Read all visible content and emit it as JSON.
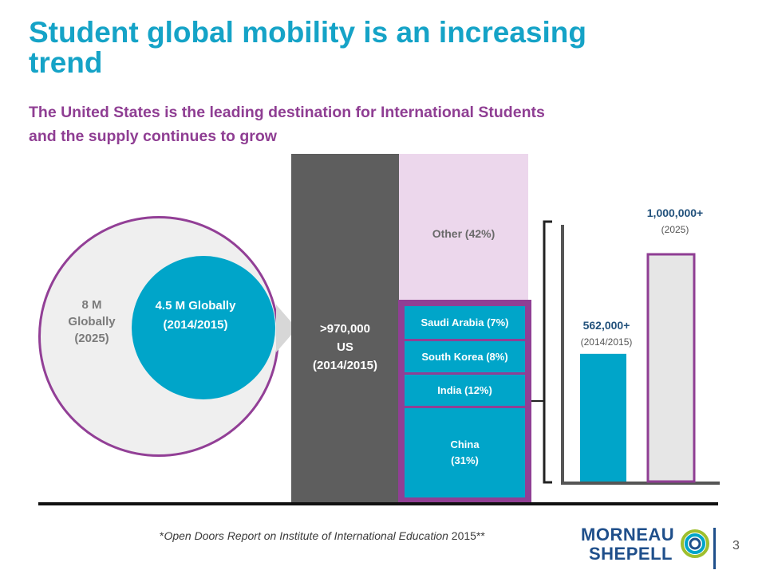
{
  "title": "Student global mobility is an increasing trend",
  "subtitle_line1": "The United States is the leading destination for International Students",
  "subtitle_line2": "and the supply continues to grow",
  "circles": {
    "outer_line1": "8 M",
    "outer_line2": "Globally",
    "outer_line3": "(2025)",
    "inner_line1": "4.5 M Globally",
    "inner_line2": "(2014/2015)"
  },
  "us_column": {
    "line1": ">970,000",
    "line2": "US",
    "line3": "(2014/2015)"
  },
  "other_label": "Other (42%)",
  "countries": [
    {
      "label": "Saudi Arabia (7%)"
    },
    {
      "label": "South Korea (8%)"
    },
    {
      "label": "India (12%)"
    },
    {
      "label": "China",
      "sub": "(31%)"
    }
  ],
  "bars": {
    "first": {
      "value": "562,000+",
      "period": "(2014/2015)"
    },
    "second": {
      "value": "1,000,000+",
      "period": "(2025)"
    }
  },
  "chart_data": {
    "type": "bar",
    "categories": [
      "(2014/2015)",
      "(2025)"
    ],
    "values": [
      562000,
      1000000
    ],
    "colors": [
      "#00a5c9",
      "#e6e6e6"
    ]
  },
  "footnote": {
    "prefix": "*",
    "italic": "Open Doors Report on Institute of International Education",
    "suffix": " 2015**"
  },
  "logo": {
    "line1": "MORNEAU",
    "line2": "SHEPELL"
  },
  "page_number": "3",
  "colors": {
    "teal": "#00a5c9",
    "purple": "#8f3e93",
    "title": "#15a3c7"
  }
}
